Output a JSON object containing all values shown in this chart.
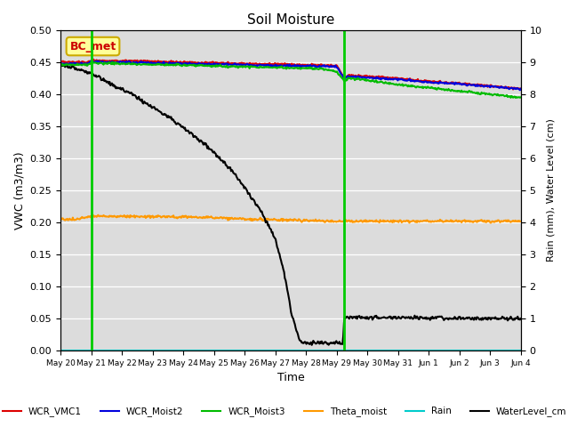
{
  "title": "Soil Moisture",
  "xlabel": "Time",
  "ylabel_left": "VWC (m3/m3)",
  "ylabel_right": "Rain (mm), Water Level (cm)",
  "ylim_left": [
    0.0,
    0.5
  ],
  "ylim_right": [
    0.0,
    10.0
  ],
  "yticks_left": [
    0.0,
    0.05,
    0.1,
    0.15,
    0.2,
    0.25,
    0.3,
    0.35,
    0.4,
    0.45,
    0.5
  ],
  "yticks_right": [
    0.0,
    1.0,
    2.0,
    3.0,
    4.0,
    5.0,
    6.0,
    7.0,
    8.0,
    9.0,
    10.0
  ],
  "bg_color": "#dcdcdc",
  "annotation_label": "BC_met",
  "annotation_box_color": "#ffff99",
  "annotation_box_edge": "#ccaa00",
  "legend_entries": [
    {
      "label": "WCR_VMC1",
      "color": "#dd0000",
      "lw": 1.5
    },
    {
      "label": "WCR_Moist2",
      "color": "#0000dd",
      "lw": 1.5
    },
    {
      "label": "WCR_Moist3",
      "color": "#00bb00",
      "lw": 1.5
    },
    {
      "label": "Theta_moist",
      "color": "#ff9900",
      "lw": 1.5
    },
    {
      "label": "Rain",
      "color": "#00cccc",
      "lw": 1.5
    },
    {
      "label": "WaterLevel_cm",
      "color": "#000000",
      "lw": 1.5
    }
  ],
  "vline_color": "#00cc00",
  "vline_lw": 2.0,
  "vline_x1": 1.0,
  "vline_x2": 9.25,
  "tick_labels": [
    "May 20",
    "May 21",
    "May 22",
    "May 23",
    "May 24",
    "May 25",
    "May 26",
    "May 27",
    "May 28",
    "May 29",
    "May 30",
    "May 31",
    "Jun 1",
    "Jun 2",
    "Jun 3",
    "Jun 4"
  ]
}
